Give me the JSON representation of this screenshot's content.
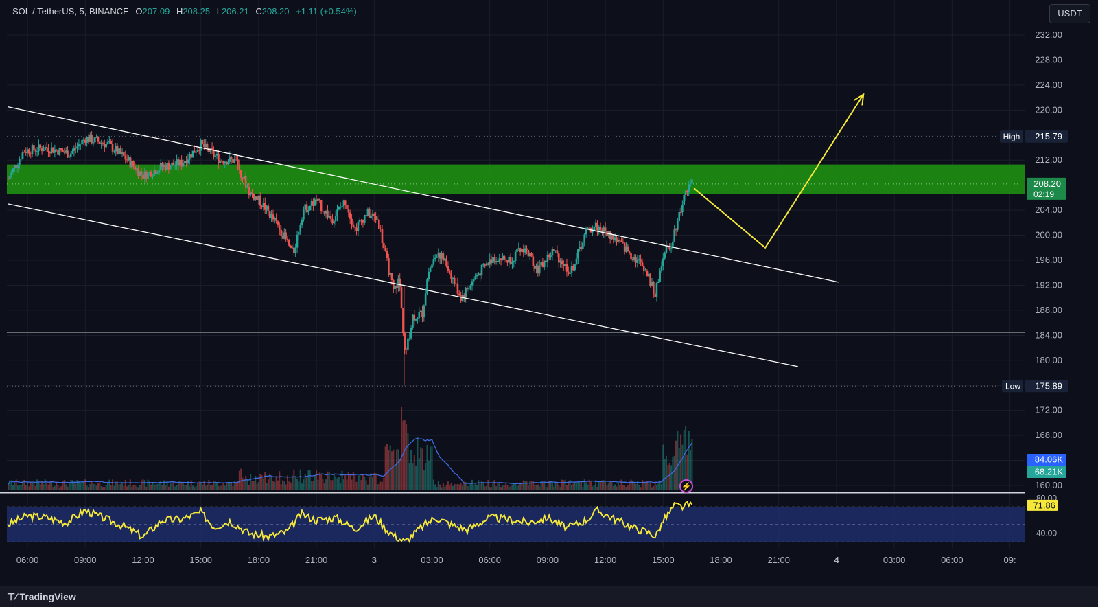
{
  "header": {
    "symbol": "SOL / TetherUS, 5, BINANCE",
    "o_label": "O",
    "o": "207.09",
    "h_label": "H",
    "h": "208.25",
    "l_label": "L",
    "l": "206.21",
    "c_label": "C",
    "c": "208.20",
    "change": "+1.11 (+0.54%)"
  },
  "currency_button": "USDT",
  "footer": {
    "brand": "TradingView"
  },
  "colors": {
    "up": "#26a69a",
    "down": "#ef5350",
    "zone": "#1e8a12",
    "projection": "#f5e83a",
    "rsi": "#f5e83a",
    "rsi_band": "#1f2d6b",
    "volume_ma": "#3f6ce0"
  },
  "chart_data": {
    "type": "candlestick",
    "price_axis": {
      "ylim": [
        158.0,
        234.0
      ],
      "ticks": [
        160,
        164,
        168,
        172,
        176,
        180,
        184,
        188,
        192,
        196,
        200,
        204,
        208,
        212,
        216,
        220,
        224,
        228,
        232
      ],
      "tick_labels": [
        "160.00",
        "168.00",
        "172.00",
        "180.00",
        "184.00",
        "188.00",
        "192.00",
        "196.00",
        "200.00",
        "204.00",
        "212.00",
        "220.00",
        "224.00",
        "228.00",
        "232.00"
      ],
      "tick_values": [
        160,
        168,
        172,
        180,
        184,
        188,
        192,
        196,
        200,
        204,
        212,
        220,
        224,
        228,
        232
      ]
    },
    "time_axis": {
      "labels": [
        "06:00",
        "09:00",
        "12:00",
        "15:00",
        "18:00",
        "21:00",
        "3",
        "03:00",
        "06:00",
        "09:00",
        "12:00",
        "15:00",
        "18:00",
        "21:00",
        "4",
        "03:00",
        "06:00",
        "09:"
      ],
      "hours": [
        6,
        9,
        12,
        15,
        18,
        21,
        24,
        27,
        30,
        33,
        36,
        39,
        42,
        45,
        48,
        51,
        54,
        57
      ]
    },
    "price_path": [
      [
        5.0,
        209.0
      ],
      [
        5.8,
        213.5
      ],
      [
        7.0,
        214.0
      ],
      [
        8.2,
        213.0
      ],
      [
        9.0,
        215.5
      ],
      [
        10.2,
        214.5
      ],
      [
        11.2,
        212.0
      ],
      [
        12.0,
        209.5
      ],
      [
        13.0,
        211.0
      ],
      [
        14.0,
        211.5
      ],
      [
        15.0,
        214.5
      ],
      [
        16.0,
        212.0
      ],
      [
        16.8,
        212.0
      ],
      [
        17.5,
        207.0
      ],
      [
        18.2,
        205.0
      ],
      [
        19.2,
        200.5
      ],
      [
        19.8,
        197.0
      ],
      [
        20.3,
        204.0
      ],
      [
        21.0,
        205.5
      ],
      [
        21.8,
        202.5
      ],
      [
        22.5,
        205.5
      ],
      [
        23.0,
        201.0
      ],
      [
        23.6,
        203.5
      ],
      [
        24.2,
        202.5
      ],
      [
        24.6,
        196.5
      ],
      [
        25.0,
        191.0
      ],
      [
        25.3,
        193.0
      ],
      [
        25.6,
        180.5
      ],
      [
        26.0,
        187.0
      ],
      [
        26.5,
        187.5
      ],
      [
        26.8,
        194.0
      ],
      [
        27.3,
        197.5
      ],
      [
        27.8,
        195.0
      ],
      [
        28.5,
        190.0
      ],
      [
        29.3,
        193.5
      ],
      [
        30.2,
        196.5
      ],
      [
        31.0,
        196.0
      ],
      [
        31.8,
        198.0
      ],
      [
        32.5,
        194.5
      ],
      [
        33.3,
        197.5
      ],
      [
        34.2,
        194.0
      ],
      [
        35.0,
        200.5
      ],
      [
        35.5,
        201.5
      ],
      [
        36.5,
        199.5
      ],
      [
        37.3,
        197.0
      ],
      [
        38.0,
        195.0
      ],
      [
        38.4,
        192.0
      ],
      [
        38.6,
        190.5
      ],
      [
        39.0,
        197.0
      ],
      [
        39.4,
        198.5
      ],
      [
        39.7,
        202.0
      ],
      [
        40.0,
        205.0
      ],
      [
        40.2,
        207.5
      ],
      [
        40.5,
        208.2
      ]
    ],
    "price_high_low": {
      "high": 215.79,
      "high_label": "High",
      "high_text": "215.79",
      "low": 175.89,
      "low_label": "Low",
      "low_text": "175.89",
      "spike_low_hour": 25.55,
      "spike_low": 176.0,
      "spike_high_hour": 25.55,
      "spike_high": 192.0
    },
    "current_price": {
      "value": 208.2,
      "text": "208.20",
      "countdown": "02:19"
    },
    "resistance_zone": {
      "top": 211.3,
      "bottom": 206.6
    },
    "horizontal_level": 184.5,
    "trendlines": [
      {
        "from": [
          5.0,
          220.5
        ],
        "to": [
          48.1,
          192.5
        ]
      },
      {
        "from": [
          5.0,
          205.0
        ],
        "to": [
          46.0,
          179.0
        ]
      }
    ],
    "projection": [
      [
        40.6,
        207.5
      ],
      [
        44.3,
        198.0
      ],
      [
        49.4,
        222.5
      ]
    ],
    "volume": {
      "ma_value": "84.06K",
      "value": "68.21K",
      "ylim": [
        0,
        100
      ]
    },
    "rsi": {
      "value": 71.86,
      "value_text": "71.86",
      "ylim": [
        24,
        82
      ],
      "band": [
        30,
        70
      ],
      "tick_labels": [
        "80.00",
        "40.00"
      ],
      "tick_values": [
        80,
        40
      ],
      "path": [
        [
          5.0,
          50
        ],
        [
          6.0,
          60
        ],
        [
          7.0,
          58
        ],
        [
          8.0,
          52
        ],
        [
          9.0,
          66
        ],
        [
          10.0,
          57
        ],
        [
          11.0,
          48
        ],
        [
          12.0,
          36
        ],
        [
          13.0,
          55
        ],
        [
          14.0,
          56
        ],
        [
          15.0,
          64
        ],
        [
          15.7,
          47
        ],
        [
          16.5,
          54
        ],
        [
          17.5,
          40
        ],
        [
          18.5,
          36
        ],
        [
          19.5,
          42
        ],
        [
          20.2,
          62
        ],
        [
          21.0,
          55
        ],
        [
          22.0,
          58
        ],
        [
          23.0,
          45
        ],
        [
          24.0,
          60
        ],
        [
          24.6,
          45
        ],
        [
          25.0,
          38
        ],
        [
          25.6,
          30
        ],
        [
          26.5,
          48
        ],
        [
          27.2,
          58
        ],
        [
          28.0,
          50
        ],
        [
          28.8,
          44
        ],
        [
          30.0,
          58
        ],
        [
          31.0,
          56
        ],
        [
          32.0,
          52
        ],
        [
          33.0,
          58
        ],
        [
          34.0,
          46
        ],
        [
          35.0,
          55
        ],
        [
          35.6,
          66
        ],
        [
          36.5,
          56
        ],
        [
          37.5,
          46
        ],
        [
          38.4,
          40
        ],
        [
          38.6,
          36
        ],
        [
          39.0,
          54
        ],
        [
          39.6,
          72
        ],
        [
          40.0,
          70
        ],
        [
          40.3,
          72
        ]
      ]
    }
  }
}
